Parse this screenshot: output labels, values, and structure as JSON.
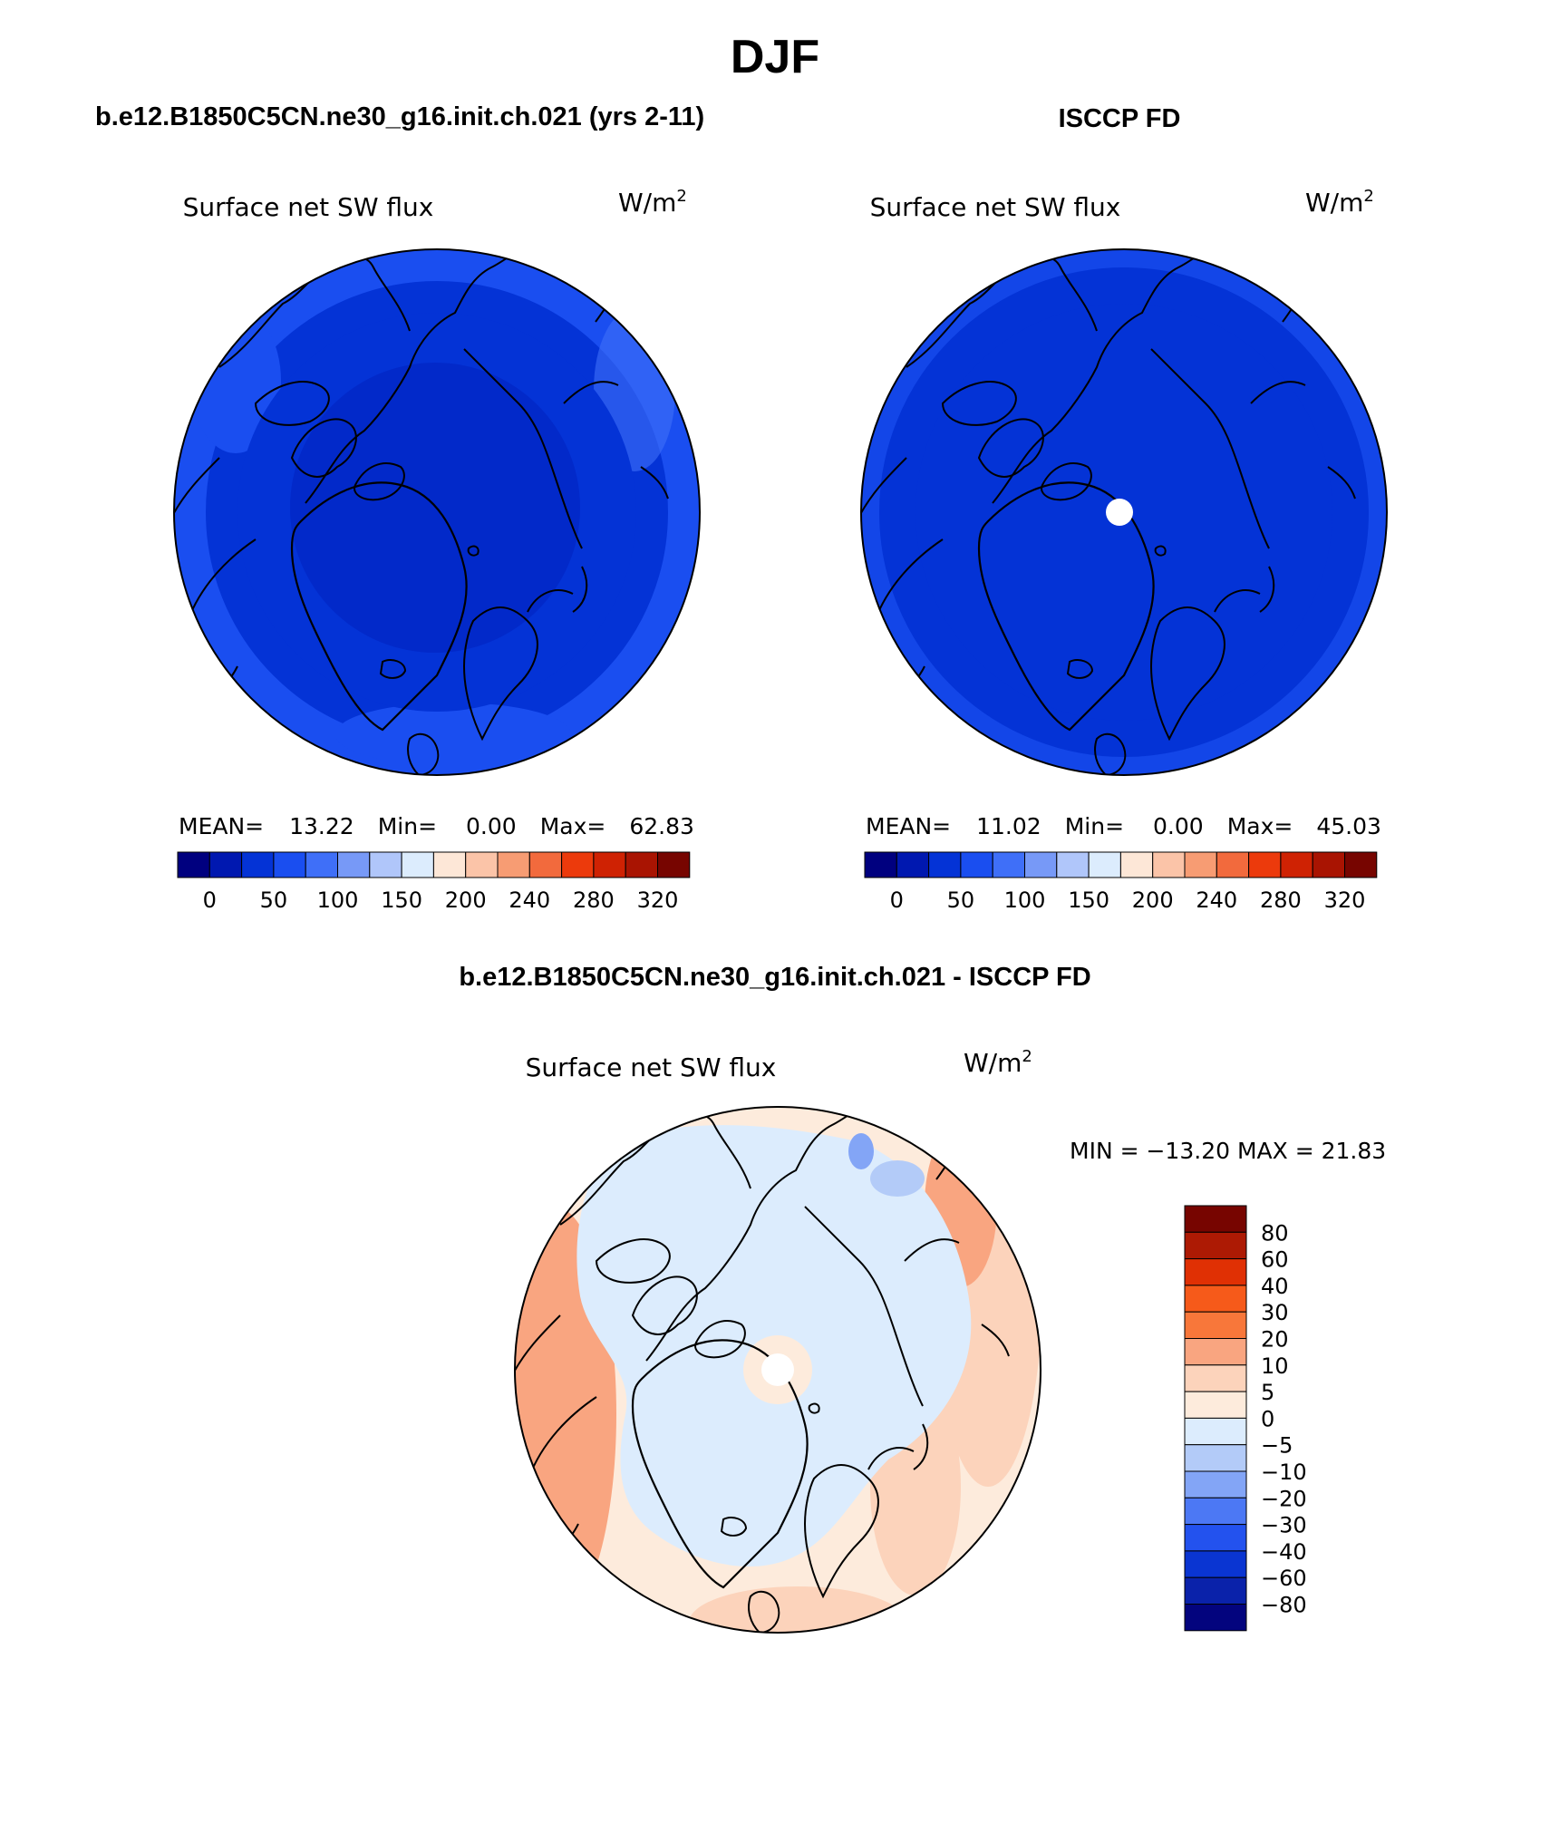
{
  "page": {
    "season": "DJF",
    "model_case": "b.e12.B1850C5CN.ne30_g16.init.ch.021 (yrs 2-11)",
    "obs_name": "ISCCP FD",
    "diff_title": "b.e12.B1850C5CN.ne30_g16.init.ch.021 - ISCCP FD"
  },
  "panels": [
    {
      "id": "model",
      "variable": "Surface net SW flux",
      "units_base": "W/m",
      "units_exp": "2",
      "stats": {
        "mean_label": "MEAN=",
        "mean": "13.22",
        "min_label": "Min=",
        "min": "0.00",
        "max_label": "Max=",
        "max": "62.83"
      },
      "has_pole_hole": false
    },
    {
      "id": "obs",
      "variable": "Surface net SW flux",
      "units_base": "W/m",
      "units_exp": "2",
      "stats": {
        "mean_label": "MEAN=",
        "mean": "11.02",
        "min_label": "Min=",
        "min": "0.00",
        "max_label": "Max=",
        "max": "45.03"
      },
      "has_pole_hole": true
    }
  ],
  "horizontal_colorbar": {
    "colors": [
      "#00007f",
      "#0018b0",
      "#0433d6",
      "#1a4ef0",
      "#3f6ff8",
      "#7799f7",
      "#b0c6fa",
      "#dcecfd",
      "#fde7d7",
      "#fbc4a8",
      "#f79c73",
      "#f26a3d",
      "#ec3a0c",
      "#cf2203",
      "#a91402",
      "#770500"
    ],
    "tick_labels": [
      "0",
      "50",
      "100",
      "150",
      "200",
      "240",
      "280",
      "320"
    ]
  },
  "diff_panel": {
    "variable": "Surface net SW flux",
    "units_base": "W/m",
    "units_exp": "2",
    "minmax_text": "MIN = −13.20 MAX =   21.83"
  },
  "vertical_colorbar": {
    "colors_top_to_bottom": [
      "#770500",
      "#ad1a04",
      "#e03004",
      "#f65a1a",
      "#f8773a",
      "#f9a580",
      "#fcd3bb",
      "#fdebdc",
      "#dcecfd",
      "#b3cbf8",
      "#83a5f6",
      "#4c78f4",
      "#2352ee",
      "#0a35d2",
      "#0a22aa",
      "#03047e"
    ],
    "tick_labels": [
      "80",
      "60",
      "40",
      "30",
      "20",
      "10",
      "5",
      "0",
      "−5",
      "−10",
      "−20",
      "−30",
      "−40",
      "−60",
      "−80"
    ]
  }
}
